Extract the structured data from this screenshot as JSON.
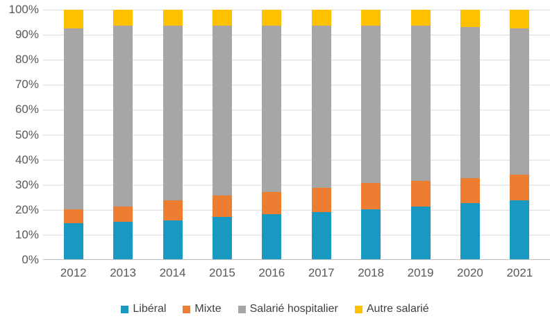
{
  "chart_data": {
    "type": "bar",
    "stacked": true,
    "percent_stack": true,
    "title": "",
    "xlabel": "",
    "ylabel": "",
    "ylim": [
      0,
      100
    ],
    "grid": true,
    "legend_position": "bottom",
    "y_ticks": [
      "100%",
      "90%",
      "80%",
      "70%",
      "60%",
      "50%",
      "40%",
      "30%",
      "20%",
      "10%",
      "0%"
    ],
    "categories": [
      "2012",
      "2013",
      "2014",
      "2015",
      "2016",
      "2017",
      "2018",
      "2019",
      "2020",
      "2021"
    ],
    "series": [
      {
        "name": "Libéral",
        "color": "#1998C2",
        "values": [
          14.5,
          15,
          15.5,
          17,
          18,
          19,
          20,
          21,
          22.5,
          23.5
        ]
      },
      {
        "name": "Mixte",
        "color": "#ED7D31",
        "values": [
          5.5,
          6,
          8,
          8.5,
          9,
          9.5,
          10.5,
          10.5,
          10,
          10.5
        ]
      },
      {
        "name": "Salarié hospitalier",
        "color": "#A6A6A6",
        "values": [
          72.5,
          72.5,
          70,
          68,
          66.5,
          65,
          63,
          62,
          60.5,
          58.5
        ]
      },
      {
        "name": "Autre salarié",
        "color": "#FFC000",
        "values": [
          7.5,
          6.5,
          6.5,
          6.5,
          6.5,
          6.5,
          6.5,
          6.5,
          7,
          7.5
        ]
      }
    ],
    "colors": {
      "grid_line": "#D9D9D9",
      "axis_line": "#BFBFBF",
      "tick_text": "#595959",
      "legend_text": "#404040",
      "background": "#FFFFFF"
    }
  }
}
